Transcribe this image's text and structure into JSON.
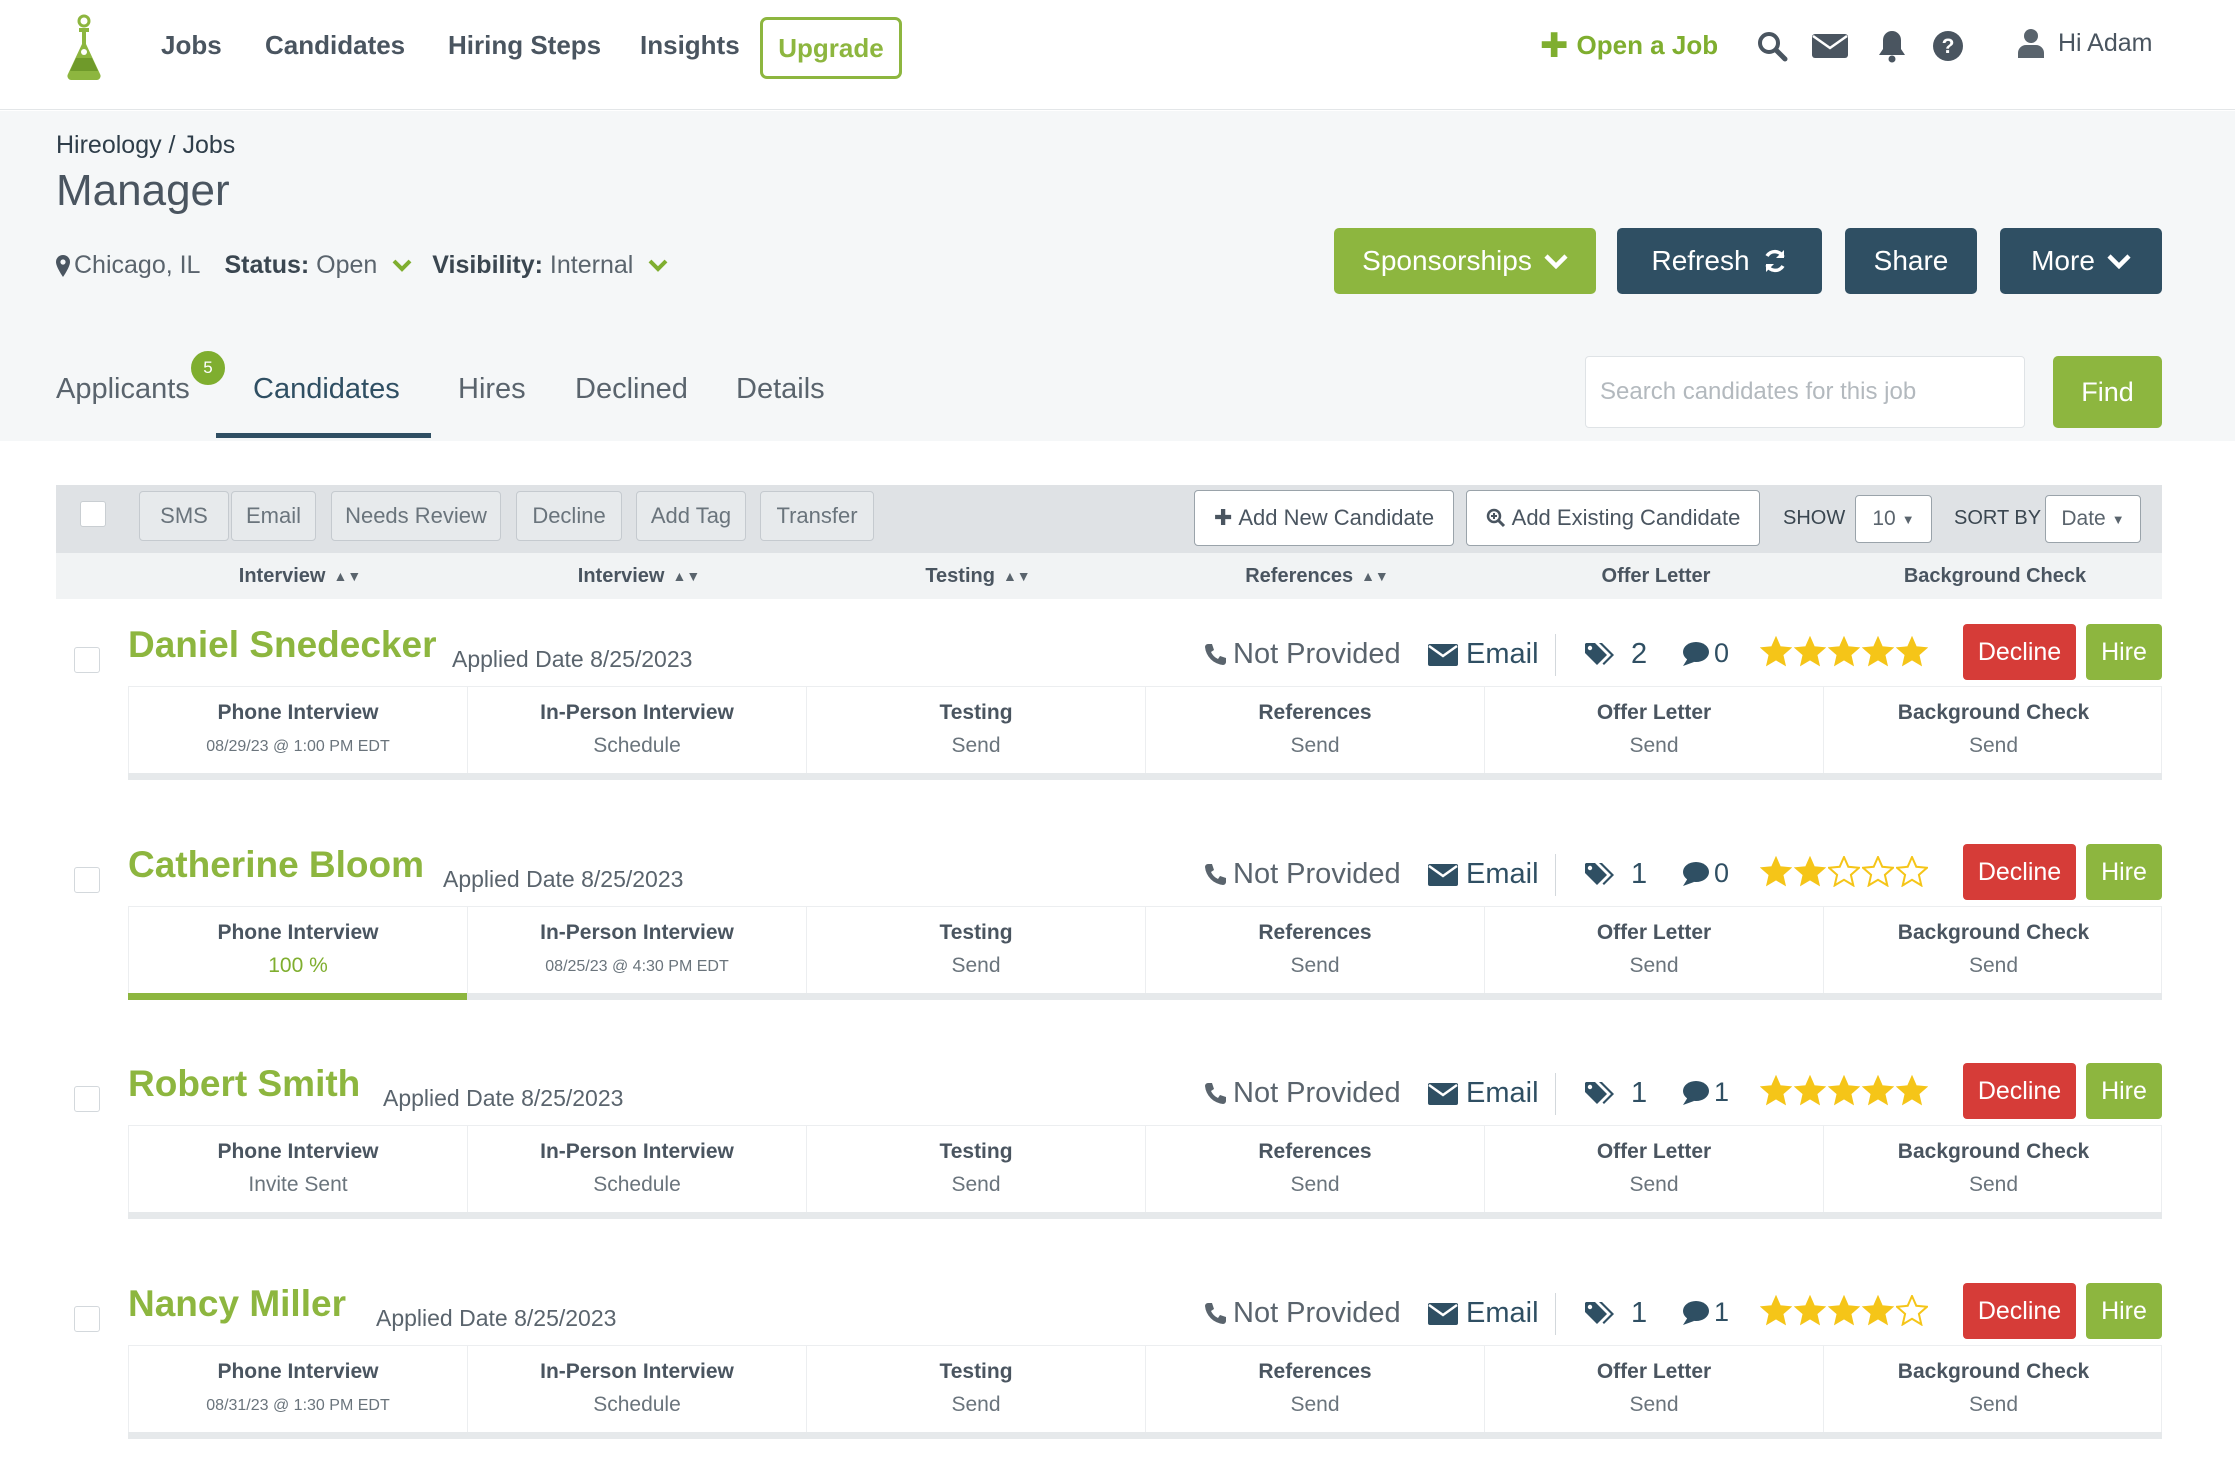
{
  "nav": {
    "links": [
      "Jobs",
      "Candidates",
      "Hiring Steps",
      "Insights"
    ],
    "upgrade": "Upgrade",
    "open_job": "Open a Job",
    "icons": [
      "search-icon",
      "envelope-icon",
      "bell-icon",
      "help-icon"
    ],
    "greeting": "Hi Adam"
  },
  "header": {
    "breadcrumb_root": "Hireology",
    "breadcrumb_sep": " / ",
    "breadcrumb_current": "Jobs",
    "title": "Manager",
    "location": "Chicago, IL",
    "status_label": "Status:",
    "status_value": "Open",
    "visibility_label": "Visibility:",
    "visibility_value": "Internal",
    "buttons": {
      "sponsorships": "Sponsorships",
      "refresh": "Refresh",
      "share": "Share",
      "more": "More"
    }
  },
  "tabs": {
    "items": [
      "Applicants",
      "Candidates",
      "Hires",
      "Declined",
      "Details"
    ],
    "active": "Candidates",
    "applicants_badge": "5"
  },
  "search": {
    "placeholder": "Search candidates for this job",
    "button": "Find"
  },
  "toolbar": {
    "actions": [
      "SMS",
      "Email",
      "Needs Review",
      "Decline",
      "Add Tag",
      "Transfer"
    ],
    "add_new": "Add New Candidate",
    "add_existing": "Add Existing Candidate",
    "show_label": "SHOW",
    "show_value": "10",
    "sort_label": "SORT BY",
    "sort_value": "Date"
  },
  "columns": [
    "Interview",
    "Interview",
    "Testing",
    "References",
    "Offer Letter",
    "Background Check"
  ],
  "candidates": [
    {
      "name": "Daniel Snedecker",
      "applied": "Applied Date 8/25/2023",
      "phone": "Not Provided",
      "email": "Email",
      "tags": "2",
      "comments": "0",
      "rating": 5,
      "decline": "Decline",
      "hire": "Hire",
      "progress": 0,
      "steps": [
        {
          "title": "Phone Interview",
          "value": "08/29/23 @ 1:00 PM EDT"
        },
        {
          "title": "In-Person Interview",
          "value": "Schedule"
        },
        {
          "title": "Testing",
          "value": "Send"
        },
        {
          "title": "References",
          "value": "Send"
        },
        {
          "title": "Offer Letter",
          "value": "Send"
        },
        {
          "title": "Background Check",
          "value": "Send"
        }
      ]
    },
    {
      "name": "Catherine Bloom",
      "applied": "Applied Date 8/25/2023",
      "phone": "Not Provided",
      "email": "Email",
      "tags": "1",
      "comments": "0",
      "rating": 2,
      "decline": "Decline",
      "hire": "Hire",
      "progress": 0.1667,
      "steps": [
        {
          "title": "Phone Interview",
          "value": "100 %"
        },
        {
          "title": "In-Person Interview",
          "value": "08/25/23 @ 4:30 PM EDT"
        },
        {
          "title": "Testing",
          "value": "Send"
        },
        {
          "title": "References",
          "value": "Send"
        },
        {
          "title": "Offer Letter",
          "value": "Send"
        },
        {
          "title": "Background Check",
          "value": "Send"
        }
      ]
    },
    {
      "name": "Robert Smith",
      "applied": "Applied Date 8/25/2023",
      "phone": "Not Provided",
      "email": "Email",
      "tags": "1",
      "comments": "1",
      "rating": 5,
      "decline": "Decline",
      "hire": "Hire",
      "progress": 0,
      "steps": [
        {
          "title": "Phone Interview",
          "value": "Invite Sent"
        },
        {
          "title": "In-Person Interview",
          "value": "Schedule"
        },
        {
          "title": "Testing",
          "value": "Send"
        },
        {
          "title": "References",
          "value": "Send"
        },
        {
          "title": "Offer Letter",
          "value": "Send"
        },
        {
          "title": "Background Check",
          "value": "Send"
        }
      ]
    },
    {
      "name": "Nancy Miller",
      "applied": "Applied Date 8/25/2023",
      "phone": "Not Provided",
      "email": "Email",
      "tags": "1",
      "comments": "1",
      "rating": 4,
      "decline": "Decline",
      "hire": "Hire",
      "progress": 0,
      "steps": [
        {
          "title": "Phone Interview",
          "value": "08/31/23 @ 1:30 PM EDT"
        },
        {
          "title": "In-Person Interview",
          "value": "Schedule"
        },
        {
          "title": "Testing",
          "value": "Send"
        },
        {
          "title": "References",
          "value": "Send"
        },
        {
          "title": "Offer Letter",
          "value": "Send"
        },
        {
          "title": "Background Check",
          "value": "Send"
        }
      ]
    }
  ],
  "colors": {
    "brand_green": "#8db63f",
    "navy": "#2f4f63",
    "decline_red": "#d63c38",
    "star_gold": "#f5c518"
  }
}
